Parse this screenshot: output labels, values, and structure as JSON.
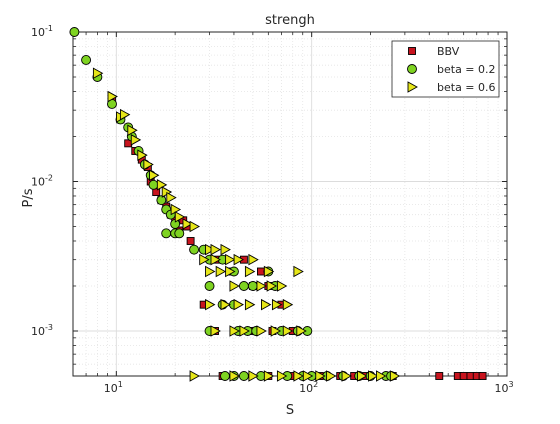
{
  "chart_data": {
    "type": "scatter",
    "title": "strengh",
    "xlabel": "S",
    "ylabel": "P/s",
    "xscale": "log",
    "yscale": "log",
    "xlim": [
      6,
      1000
    ],
    "ylim": [
      0.0005,
      0.1
    ],
    "x_ticks": [
      {
        "value": 10,
        "base": "10",
        "exp": "1"
      },
      {
        "value": 100,
        "base": "10",
        "exp": "2"
      },
      {
        "value": 1000,
        "base": "10",
        "exp": "3"
      }
    ],
    "y_ticks": [
      {
        "value": 0.001,
        "base": "10",
        "exp": "-3"
      },
      {
        "value": 0.01,
        "base": "10",
        "exp": "-2"
      },
      {
        "value": 0.1,
        "base": "10",
        "exp": "-1"
      }
    ],
    "grid": true,
    "minor_grid": true,
    "legend_position": "top-right",
    "series": [
      {
        "name": "BBV",
        "marker": "square",
        "color": "#c8141e",
        "points": [
          [
            9.5,
            0.035
          ],
          [
            10.5,
            0.026
          ],
          [
            11.5,
            0.018
          ],
          [
            12.5,
            0.016
          ],
          [
            13.5,
            0.014
          ],
          [
            14.5,
            0.0125
          ],
          [
            15,
            0.01
          ],
          [
            16,
            0.0085
          ],
          [
            17,
            0.0075
          ],
          [
            18,
            0.0068
          ],
          [
            19,
            0.006
          ],
          [
            20,
            0.0055
          ],
          [
            21,
            0.0047
          ],
          [
            22,
            0.0055
          ],
          [
            23,
            0.005
          ],
          [
            24,
            0.004
          ],
          [
            33,
            0.003
          ],
          [
            38,
            0.0025
          ],
          [
            45,
            0.003
          ],
          [
            50,
            0.002
          ],
          [
            55,
            0.0025
          ],
          [
            60,
            0.002
          ],
          [
            70,
            0.0015
          ],
          [
            80,
            0.001
          ],
          [
            28,
            0.0015
          ],
          [
            32,
            0.001
          ],
          [
            50,
            0.001
          ],
          [
            63,
            0.001
          ],
          [
            35,
            0.0005
          ],
          [
            60,
            0.0005
          ],
          [
            80,
            0.0005
          ],
          [
            110,
            0.0005
          ],
          [
            140,
            0.0005
          ],
          [
            165,
            0.0005
          ],
          [
            190,
            0.0005
          ],
          [
            260,
            0.0005
          ],
          [
            450,
            0.0005
          ],
          [
            560,
            0.0005
          ],
          [
            600,
            0.0005
          ],
          [
            650,
            0.0005
          ],
          [
            700,
            0.0005
          ],
          [
            750,
            0.0005
          ]
        ]
      },
      {
        "name": "beta = 0.2",
        "marker": "circle",
        "color": "#7ed321",
        "points": [
          [
            6.1,
            0.1
          ],
          [
            7,
            0.065
          ],
          [
            8,
            0.05
          ],
          [
            9.5,
            0.033
          ],
          [
            10.5,
            0.026
          ],
          [
            11.5,
            0.023
          ],
          [
            12,
            0.02
          ],
          [
            13,
            0.016
          ],
          [
            14,
            0.013
          ],
          [
            15,
            0.011
          ],
          [
            15.5,
            0.0095
          ],
          [
            17,
            0.0075
          ],
          [
            18,
            0.0065
          ],
          [
            19,
            0.006
          ],
          [
            20,
            0.0052
          ],
          [
            18,
            0.0045
          ],
          [
            20,
            0.0045
          ],
          [
            21,
            0.0045
          ],
          [
            25,
            0.0035
          ],
          [
            28,
            0.0035
          ],
          [
            30,
            0.003
          ],
          [
            35,
            0.003
          ],
          [
            40,
            0.0025
          ],
          [
            60,
            0.0025
          ],
          [
            30,
            0.002
          ],
          [
            45,
            0.002
          ],
          [
            50,
            0.002
          ],
          [
            65,
            0.002
          ],
          [
            35,
            0.0015
          ],
          [
            40,
            0.0015
          ],
          [
            30,
            0.001
          ],
          [
            42,
            0.001
          ],
          [
            47,
            0.001
          ],
          [
            52,
            0.001
          ],
          [
            70,
            0.001
          ],
          [
            85,
            0.001
          ],
          [
            95,
            0.001
          ],
          [
            36,
            0.0005
          ],
          [
            40,
            0.0005
          ],
          [
            45,
            0.0005
          ],
          [
            55,
            0.0005
          ],
          [
            75,
            0.0005
          ],
          [
            90,
            0.0005
          ],
          [
            100,
            0.0005
          ],
          [
            120,
            0.0005
          ],
          [
            145,
            0.0005
          ],
          [
            175,
            0.0005
          ],
          [
            200,
            0.0005
          ],
          [
            240,
            0.0005
          ],
          [
            255,
            0.0005
          ]
        ]
      },
      {
        "name": "beta = 0.6",
        "marker": "triangle-right",
        "color": "#e6e619",
        "points": [
          [
            8,
            0.053
          ],
          [
            9.5,
            0.037
          ],
          [
            10.5,
            0.027
          ],
          [
            11,
            0.028
          ],
          [
            12,
            0.022
          ],
          [
            12.5,
            0.019
          ],
          [
            13.5,
            0.015
          ],
          [
            14.5,
            0.013
          ],
          [
            15.5,
            0.011
          ],
          [
            17,
            0.0095
          ],
          [
            18,
            0.0085
          ],
          [
            19,
            0.0078
          ],
          [
            20,
            0.0065
          ],
          [
            21,
            0.0058
          ],
          [
            23,
            0.0052
          ],
          [
            25,
            0.005
          ],
          [
            30,
            0.0035
          ],
          [
            32,
            0.0035
          ],
          [
            36,
            0.0035
          ],
          [
            28,
            0.003
          ],
          [
            32,
            0.003
          ],
          [
            38,
            0.003
          ],
          [
            42,
            0.003
          ],
          [
            50,
            0.003
          ],
          [
            30,
            0.0025
          ],
          [
            34,
            0.0025
          ],
          [
            38,
            0.0025
          ],
          [
            48,
            0.0025
          ],
          [
            60,
            0.0025
          ],
          [
            85,
            0.0025
          ],
          [
            40,
            0.002
          ],
          [
            55,
            0.002
          ],
          [
            62,
            0.002
          ],
          [
            70,
            0.002
          ],
          [
            30,
            0.0015
          ],
          [
            36,
            0.0015
          ],
          [
            42,
            0.0015
          ],
          [
            48,
            0.0015
          ],
          [
            58,
            0.0015
          ],
          [
            66,
            0.0015
          ],
          [
            75,
            0.0015
          ],
          [
            32,
            0.001
          ],
          [
            40,
            0.001
          ],
          [
            45,
            0.001
          ],
          [
            55,
            0.001
          ],
          [
            65,
            0.001
          ],
          [
            75,
            0.001
          ],
          [
            88,
            0.001
          ],
          [
            25,
            0.0005
          ],
          [
            40,
            0.0005
          ],
          [
            50,
            0.0005
          ],
          [
            60,
            0.0005
          ],
          [
            70,
            0.0005
          ],
          [
            85,
            0.0005
          ],
          [
            95,
            0.0005
          ],
          [
            110,
            0.0005
          ],
          [
            125,
            0.0005
          ],
          [
            150,
            0.0005
          ],
          [
            180,
            0.0005
          ],
          [
            205,
            0.0005
          ],
          [
            225,
            0.0005
          ],
          [
            265,
            0.0005
          ]
        ]
      }
    ]
  }
}
